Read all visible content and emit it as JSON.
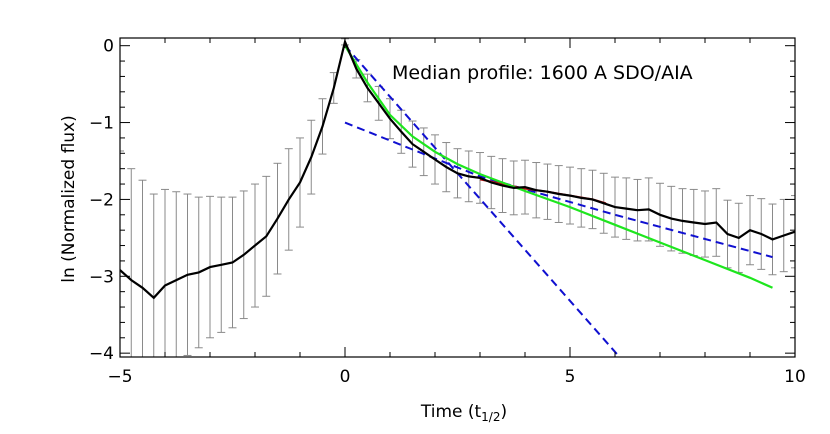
{
  "chart_data": {
    "type": "line",
    "title": "",
    "annotation": "Median profile: 1600 A SDO/AIA",
    "xlabel": "Time (t",
    "xlabel_sub": "1/2",
    "xlabel_end": ")",
    "ylabel": "ln (Normalized flux)",
    "xlim": [
      -5,
      10
    ],
    "ylim": [
      -4.05,
      0.1
    ],
    "x_ticks": [
      -5,
      0,
      5,
      10
    ],
    "x_tick_labels": [
      "−5",
      "0",
      "5",
      "10"
    ],
    "x_minor_step": 1,
    "y_ticks": [
      -4,
      -3,
      -2,
      -1,
      0
    ],
    "y_tick_labels": [
      "−4",
      "−3",
      "−2",
      "−1",
      "0"
    ],
    "y_minor_step": 0.2,
    "grid": false,
    "colors": {
      "median": "#000000",
      "error_bars": "#8a8a8a",
      "dashed": "#1010d0",
      "fit_green": "#1ee61e",
      "fit_red": "#b41414"
    },
    "median_profile": {
      "x": [
        -5,
        -4.75,
        -4.5,
        -4.25,
        -4,
        -3.75,
        -3.5,
        -3.25,
        -3,
        -2.75,
        -2.5,
        -2.25,
        -2,
        -1.75,
        -1.5,
        -1.25,
        -1,
        -0.75,
        -0.5,
        -0.25,
        0,
        0.25,
        0.5,
        0.75,
        1,
        1.25,
        1.5,
        1.75,
        2,
        2.25,
        2.5,
        2.75,
        3,
        3.25,
        3.5,
        3.75,
        4,
        4.25,
        4.5,
        4.75,
        5,
        5.25,
        5.5,
        5.75,
        6,
        6.25,
        6.5,
        6.75,
        7,
        7.25,
        7.5,
        7.75,
        8,
        8.25,
        8.5,
        8.75,
        9,
        9.25,
        9.5,
        9.75,
        10
      ],
      "y": [
        -2.92,
        -3.05,
        -3.15,
        -3.28,
        -3.12,
        -3.05,
        -2.98,
        -2.95,
        -2.88,
        -2.85,
        -2.82,
        -2.72,
        -2.6,
        -2.48,
        -2.25,
        -2.0,
        -1.78,
        -1.45,
        -1.05,
        -0.55,
        0.05,
        -0.3,
        -0.55,
        -0.75,
        -0.95,
        -1.12,
        -1.28,
        -1.38,
        -1.48,
        -1.58,
        -1.66,
        -1.7,
        -1.72,
        -1.78,
        -1.82,
        -1.85,
        -1.84,
        -1.88,
        -1.9,
        -1.93,
        -1.95,
        -1.98,
        -2.0,
        -2.05,
        -2.1,
        -2.12,
        -2.14,
        -2.13,
        -2.2,
        -2.25,
        -2.28,
        -2.3,
        -2.32,
        -2.3,
        -2.45,
        -2.5,
        -2.4,
        -2.45,
        -2.52,
        -2.47,
        -2.42
      ]
    },
    "error_half_width": [
      1.55,
      1.45,
      1.4,
      1.35,
      1.25,
      1.15,
      1.05,
      0.98,
      0.92,
      0.88,
      0.85,
      0.83,
      0.8,
      0.78,
      0.72,
      0.66,
      0.58,
      0.48,
      0.36,
      0.2,
      0.04,
      0.12,
      0.18,
      0.22,
      0.26,
      0.28,
      0.3,
      0.31,
      0.32,
      0.32,
      0.32,
      0.33,
      0.33,
      0.34,
      0.35,
      0.35,
      0.35,
      0.36,
      0.36,
      0.37,
      0.37,
      0.38,
      0.38,
      0.39,
      0.39,
      0.4,
      0.4,
      0.41,
      0.41,
      0.42,
      0.42,
      0.43,
      0.43,
      0.44,
      0.44,
      0.45,
      0.45,
      0.46,
      0.46,
      0.47,
      0.47
    ],
    "fits": [
      {
        "style": "dashed",
        "color_key": "dashed",
        "x": [
          0,
          6.1
        ],
        "y": [
          0,
          -4.05
        ]
      },
      {
        "style": "dashed",
        "color_key": "dashed",
        "x": [
          0,
          1.5,
          3,
          6,
          9.5
        ],
        "y": [
          -1.0,
          -1.35,
          -1.7,
          -2.2,
          -2.75
        ]
      },
      {
        "style": "solid",
        "color_key": "fit_red",
        "x": [
          3.0,
          3.5,
          4.0,
          4.5,
          5.0,
          5.5,
          5.8
        ],
        "y": [
          -1.74,
          -1.8,
          -1.86,
          -1.9,
          -1.95,
          -2.0,
          -2.05
        ]
      },
      {
        "style": "solid",
        "color_key": "fit_green",
        "x": [
          0,
          0.5,
          1,
          1.5,
          2,
          2.5,
          3,
          4,
          5,
          6,
          7,
          8,
          9,
          9.5
        ],
        "y": [
          0,
          -0.48,
          -0.9,
          -1.18,
          -1.38,
          -1.54,
          -1.67,
          -1.89,
          -2.1,
          -2.33,
          -2.56,
          -2.79,
          -3.02,
          -3.15
        ]
      }
    ]
  }
}
